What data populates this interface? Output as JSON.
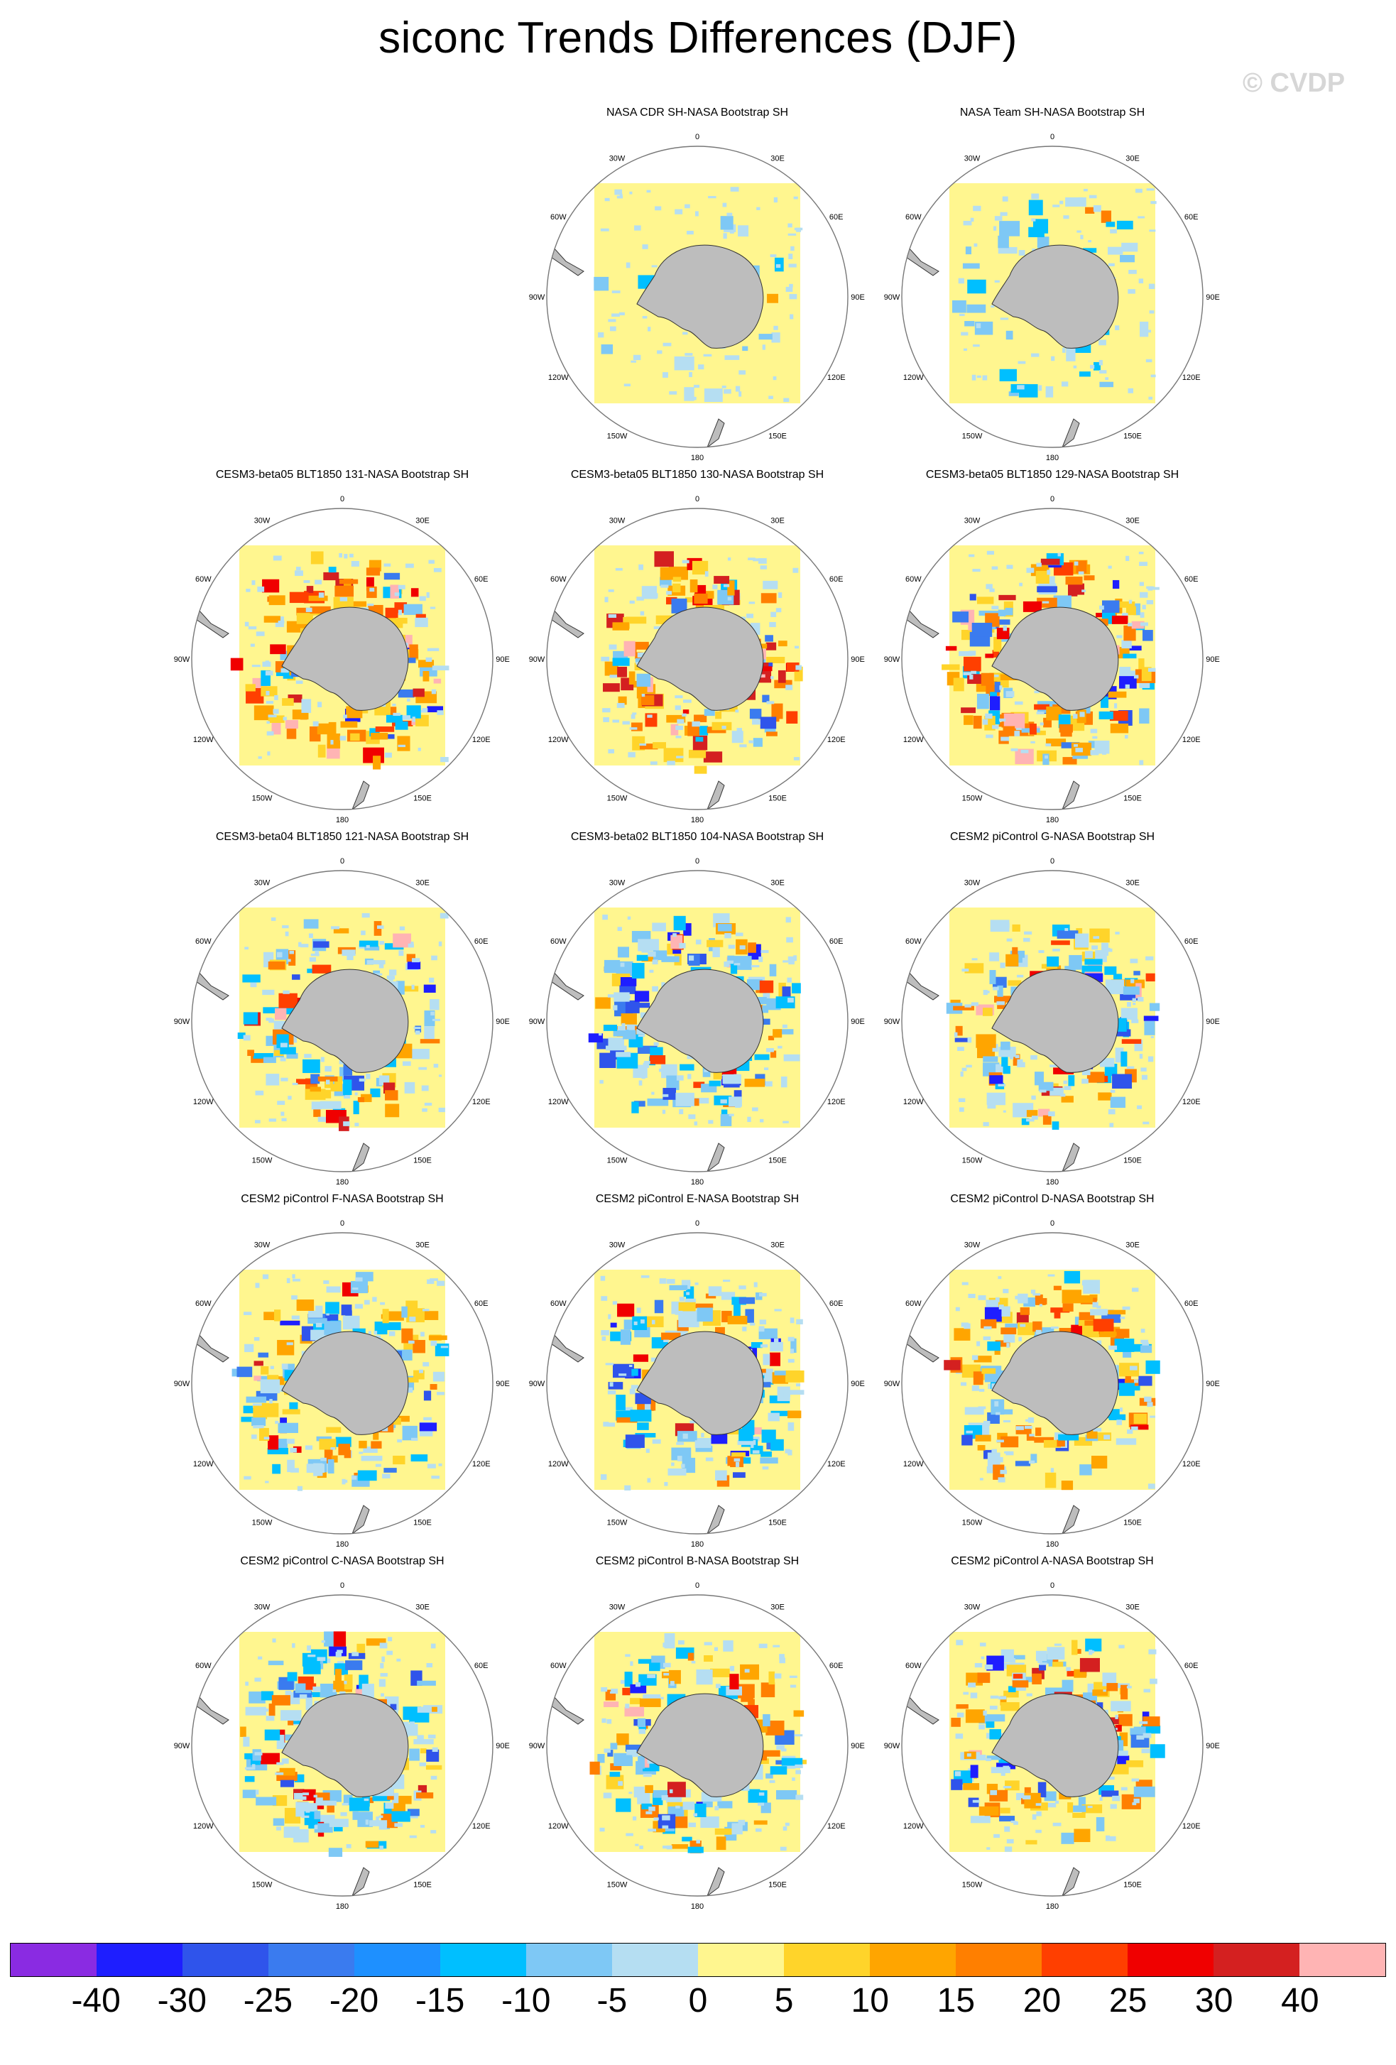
{
  "title": "siconc Trends Differences (DJF)",
  "watermark": "© CVDP",
  "lon_labels": [
    "0",
    "30E",
    "60E",
    "90E",
    "120E",
    "150E",
    "180",
    "150W",
    "120W",
    "90W",
    "60W",
    "30W"
  ],
  "panels": [
    {
      "title": "NASA CDR SH-NASA Bootstrap SH",
      "pattern": "obs1"
    },
    {
      "title": "NASA Team SH-NASA Bootstrap SH",
      "pattern": "obs2"
    },
    {
      "title": "CESM3-beta05 BLT1850 131-NASA Bootstrap SH",
      "pattern": "warm1"
    },
    {
      "title": "CESM3-beta05 BLT1850 130-NASA Bootstrap SH",
      "pattern": "warm2"
    },
    {
      "title": "CESM3-beta05 BLT1850 129-NASA Bootstrap SH",
      "pattern": "warm3"
    },
    {
      "title": "CESM3-beta04 BLT1850 121-NASA Bootstrap SH",
      "pattern": "mixed1"
    },
    {
      "title": "CESM3-beta02 BLT1850 104-NASA Bootstrap SH",
      "pattern": "cool1"
    },
    {
      "title": "CESM2 piControl G-NASA Bootstrap SH",
      "pattern": "mixed2"
    },
    {
      "title": "CESM2 piControl F-NASA Bootstrap SH",
      "pattern": "mixed3"
    },
    {
      "title": "CESM2 piControl E-NASA Bootstrap SH",
      "pattern": "cool2"
    },
    {
      "title": "CESM2 piControl D-NASA Bootstrap SH",
      "pattern": "mixed4"
    },
    {
      "title": "CESM2 piControl C-NASA Bootstrap SH",
      "pattern": "mixed5"
    },
    {
      "title": "CESM2 piControl B-NASA Bootstrap SH",
      "pattern": "mixed6"
    },
    {
      "title": "CESM2 piControl A-NASA Bootstrap SH",
      "pattern": "mixed7"
    }
  ],
  "colorbar": {
    "colors": [
      "#8a2be2",
      "#1e1eff",
      "#2f54eb",
      "#3a7bef",
      "#1e90ff",
      "#00bfff",
      "#7ec8f5",
      "#b5def2",
      "#fff68f",
      "#ffd42a",
      "#ffa500",
      "#ff7f00",
      "#ff3f00",
      "#f00000",
      "#d42020",
      "#ffb4b4"
    ],
    "labels": [
      "-40",
      "-30",
      "-25",
      "-20",
      "-15",
      "-10",
      "-5",
      "0",
      "5",
      "10",
      "15",
      "20",
      "25",
      "30",
      "40"
    ]
  }
}
